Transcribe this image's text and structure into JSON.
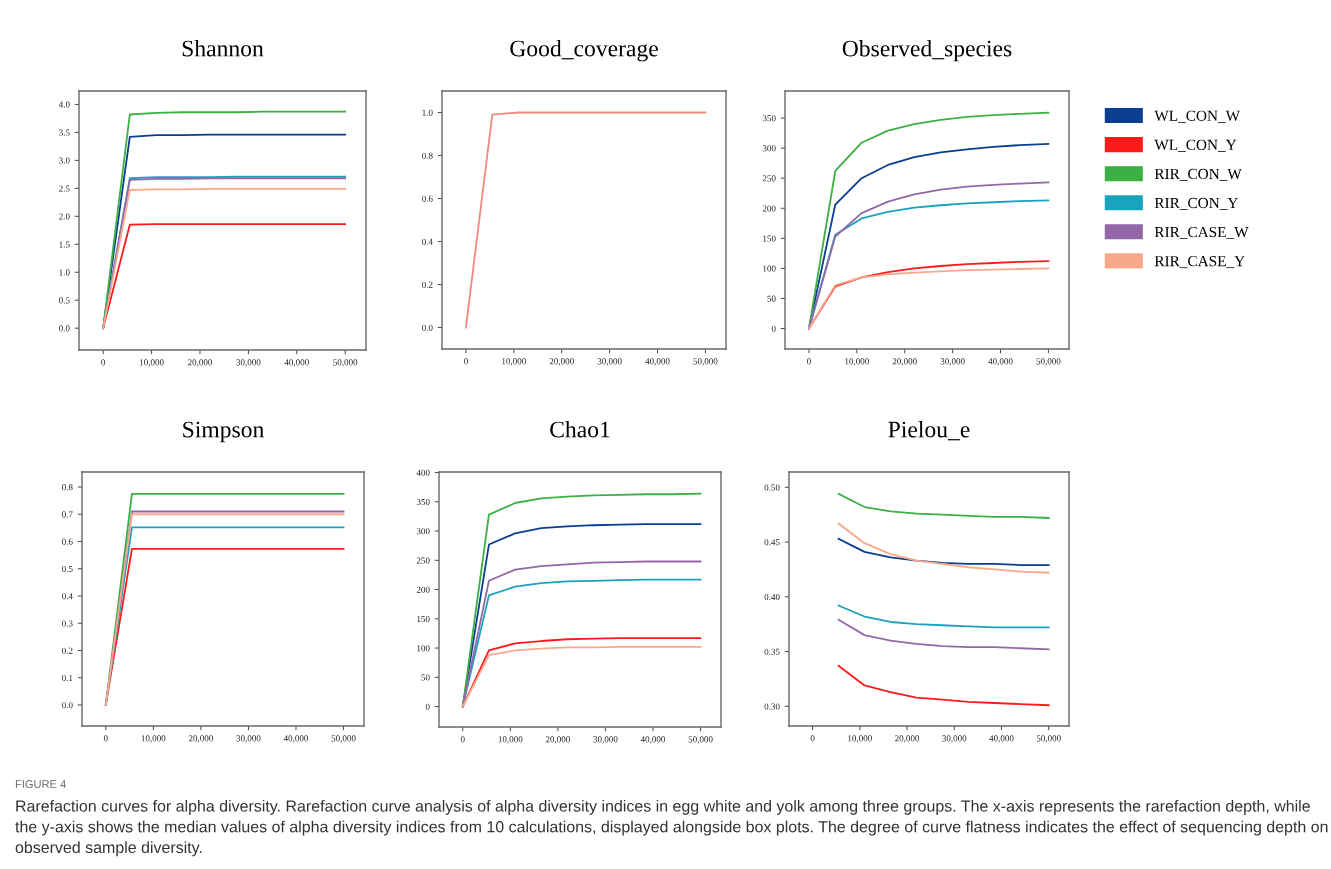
{
  "chart_data": [
    {
      "type": "line",
      "title": "Shannon",
      "x": [
        0,
        5500,
        11000,
        16500,
        22000,
        27500,
        33000,
        38500,
        44000,
        50000
      ],
      "xlim": [
        -5000,
        54300
      ],
      "xticks": [
        0,
        {
          "value": 10000,
          "label": "10,000"
        },
        {
          "value": 20000,
          "label": "20,000"
        },
        {
          "value": 30000,
          "label": "30,000"
        },
        {
          "value": 40000,
          "label": "40,000"
        },
        {
          "value": 50000,
          "label": "50,000"
        }
      ],
      "ylim": [
        -0.39,
        4.24
      ],
      "yticks": [
        {
          "value": 0,
          "label": "0.0"
        },
        0.5,
        {
          "value": 1,
          "label": "1.0"
        },
        1.5,
        {
          "value": 2,
          "label": "2.0"
        },
        2.5,
        {
          "value": 3,
          "label": "3.0"
        },
        3.5,
        {
          "value": 4,
          "label": "4.0"
        }
      ],
      "grid": false,
      "marker": "none",
      "series": [
        {
          "color": "#0b3d91",
          "values": [
            0,
            3.42,
            3.45,
            3.45,
            3.46,
            3.46,
            3.46,
            3.46,
            3.46,
            3.46
          ]
        },
        {
          "color": "#ff1a1a",
          "values": [
            0,
            1.85,
            1.86,
            1.86,
            1.86,
            1.86,
            1.86,
            1.86,
            1.86,
            1.86
          ]
        },
        {
          "color": "#3cb043",
          "values": [
            0,
            3.82,
            3.85,
            3.86,
            3.86,
            3.86,
            3.87,
            3.87,
            3.87,
            3.87
          ]
        },
        {
          "color": "#1aa3bf",
          "values": [
            0,
            2.68,
            2.7,
            2.7,
            2.7,
            2.71,
            2.71,
            2.71,
            2.71,
            2.71
          ]
        },
        {
          "color": "#9467a8",
          "values": [
            0,
            2.65,
            2.67,
            2.67,
            2.68,
            2.68,
            2.68,
            2.68,
            2.68,
            2.68
          ]
        },
        {
          "color": "#f9a98a",
          "values": [
            0,
            2.47,
            2.48,
            2.48,
            2.49,
            2.49,
            2.49,
            2.49,
            2.49,
            2.49
          ]
        }
      ],
      "annotations": [
        "FIGURE 4",
        "Rarefaction curves for alpha diversity. Rarefaction curve analysis of alpha diversity indices in egg white and yolk among three groups. The x-axis represents the rarefaction depth, while the y-axis shows the median values of alpha diversity indices from 10 calculations, displayed alongside box plots. The degree of curve flatness indicates the effect of sequencing depth on observed sample diversity."
      ]
    },
    {
      "type": "line",
      "title": "Good_coverage",
      "x": [
        0,
        5500,
        11000,
        16500,
        22000,
        27500,
        33000,
        38500,
        44000,
        50000
      ],
      "xlim": [
        -5000,
        54300
      ],
      "xticks": [
        0,
        {
          "value": 10000,
          "label": "10,000"
        },
        {
          "value": 20000,
          "label": "20,000"
        },
        {
          "value": 30000,
          "label": "30,000"
        },
        {
          "value": 40000,
          "label": "40,000"
        },
        {
          "value": 50000,
          "label": "50,000"
        }
      ],
      "ylim": [
        -0.1,
        1.1
      ],
      "yticks": [
        {
          "value": 0,
          "label": "0.0"
        },
        0.2,
        0.4,
        0.6,
        0.8,
        {
          "value": 1,
          "label": "1.0"
        }
      ],
      "grid": false,
      "marker": "none",
      "series": [
        {
          "color": "#f08a7a",
          "values": [
            0,
            0.99,
            1.0,
            1.0,
            1.0,
            1.0,
            1.0,
            1.0,
            1.0,
            1.0
          ]
        }
      ]
    },
    {
      "type": "line",
      "title": "Observed_species",
      "x": [
        0,
        5500,
        11000,
        16500,
        22000,
        27500,
        33000,
        38500,
        44000,
        50000
      ],
      "xlim": [
        -5000,
        54300
      ],
      "xticks": [
        0,
        {
          "value": 10000,
          "label": "10,000"
        },
        {
          "value": 20000,
          "label": "20,000"
        },
        {
          "value": 30000,
          "label": "30,000"
        },
        {
          "value": 40000,
          "label": "40,000"
        },
        {
          "value": 50000,
          "label": "50,000"
        }
      ],
      "ylim": [
        -34,
        395
      ],
      "yticks": [
        0,
        50,
        100,
        150,
        200,
        250,
        300,
        350
      ],
      "grid": false,
      "legend": "right",
      "marker": "none",
      "series": [
        {
          "name": "WL_CON_W",
          "color": "#0b3d91",
          "values": [
            0,
            206,
            250,
            272,
            285,
            293,
            298,
            302,
            305,
            307
          ]
        },
        {
          "name": "WL_CON_Y",
          "color": "#ff1a1a",
          "values": [
            0,
            70,
            85,
            94,
            100,
            104,
            107,
            109,
            111,
            112
          ]
        },
        {
          "name": "RIR_CON_W",
          "color": "#3cb043",
          "values": [
            0,
            262,
            309,
            329,
            340,
            347,
            352,
            355,
            357,
            359
          ]
        },
        {
          "name": "RIR_CON_Y",
          "color": "#1aa3bf",
          "values": [
            0,
            156,
            183,
            194,
            201,
            205,
            208,
            210,
            212,
            213
          ]
        },
        {
          "name": "RIR_CASE_W",
          "color": "#9467a8",
          "values": [
            0,
            153,
            192,
            211,
            223,
            231,
            236,
            239,
            241,
            243
          ]
        },
        {
          "name": "RIR_CASE_Y",
          "color": "#f9a98a",
          "values": [
            0,
            72,
            85,
            90,
            93,
            95,
            97,
            98,
            99,
            100
          ]
        }
      ]
    },
    {
      "type": "line",
      "title": "Simpson",
      "x": [
        0,
        5500,
        11000,
        16500,
        22000,
        27500,
        33000,
        38500,
        44000,
        50000
      ],
      "xlim": [
        -5000,
        54300
      ],
      "xticks": [
        0,
        {
          "value": 10000,
          "label": "10,000"
        },
        {
          "value": 20000,
          "label": "20,000"
        },
        {
          "value": 30000,
          "label": "30,000"
        },
        {
          "value": 40000,
          "label": "40,000"
        },
        {
          "value": 50000,
          "label": "50,000"
        }
      ],
      "ylim": [
        -0.077,
        0.855
      ],
      "yticks": [
        {
          "value": 0,
          "label": "0.0"
        },
        0.1,
        0.2,
        0.3,
        0.4,
        0.5,
        0.6,
        0.7,
        0.8
      ],
      "grid": false,
      "marker": "none",
      "series": [
        {
          "color": "#ff1a1a",
          "values": [
            0,
            0.573,
            0.573,
            0.573,
            0.573,
            0.573,
            0.573,
            0.573,
            0.573,
            0.573
          ]
        },
        {
          "color": "#3cb043",
          "values": [
            0,
            0.775,
            0.775,
            0.775,
            0.775,
            0.775,
            0.775,
            0.775,
            0.775,
            0.775
          ]
        },
        {
          "color": "#1aa3bf",
          "values": [
            0,
            0.652,
            0.652,
            0.652,
            0.652,
            0.652,
            0.652,
            0.652,
            0.652,
            0.652
          ]
        },
        {
          "color": "#9467a8",
          "values": [
            0,
            0.71,
            0.71,
            0.71,
            0.71,
            0.71,
            0.71,
            0.71,
            0.71,
            0.71
          ]
        },
        {
          "color": "#f9a98a",
          "values": [
            0,
            0.7,
            0.7,
            0.7,
            0.7,
            0.7,
            0.7,
            0.7,
            0.7,
            0.7
          ]
        }
      ]
    },
    {
      "type": "line",
      "title": "Chao1",
      "x": [
        0,
        5500,
        11000,
        16500,
        22000,
        27500,
        33000,
        38500,
        44000,
        50000
      ],
      "xlim": [
        -5000,
        54300
      ],
      "xticks": [
        0,
        {
          "value": 10000,
          "label": "10,000"
        },
        {
          "value": 20000,
          "label": "20,000"
        },
        {
          "value": 30000,
          "label": "30,000"
        },
        {
          "value": 40000,
          "label": "40,000"
        },
        {
          "value": 50000,
          "label": "50,000"
        }
      ],
      "ylim": [
        -35,
        401
      ],
      "yticks": [
        0,
        50,
        100,
        150,
        200,
        250,
        300,
        350,
        400
      ],
      "grid": false,
      "marker": "none",
      "series": [
        {
          "color": "#0b3d91",
          "values": [
            0,
            277,
            296,
            305,
            308,
            310,
            311,
            312,
            312,
            312
          ]
        },
        {
          "color": "#ff1a1a",
          "values": [
            0,
            96,
            108,
            112,
            115,
            116,
            117,
            117,
            117,
            117
          ]
        },
        {
          "color": "#3cb043",
          "values": [
            0,
            328,
            348,
            356,
            359,
            361,
            362,
            363,
            363,
            364
          ]
        },
        {
          "color": "#1aa3bf",
          "values": [
            0,
            190,
            205,
            211,
            214,
            215,
            216,
            217,
            217,
            217
          ]
        },
        {
          "color": "#9467a8",
          "values": [
            0,
            215,
            234,
            240,
            243,
            246,
            247,
            248,
            248,
            248
          ]
        },
        {
          "color": "#f9a98a",
          "values": [
            0,
            88,
            96,
            99,
            101,
            101,
            102,
            102,
            102,
            102
          ]
        }
      ]
    },
    {
      "type": "line",
      "title": "Pielou_e",
      "x": [
        5500,
        11000,
        16500,
        22000,
        27500,
        33000,
        38500,
        44000,
        50000
      ],
      "xlim": [
        -5000,
        54300
      ],
      "xticks": [
        0,
        {
          "value": 10000,
          "label": "10,000"
        },
        {
          "value": 20000,
          "label": "20,000"
        },
        {
          "value": 30000,
          "label": "30,000"
        },
        {
          "value": 40000,
          "label": "40,000"
        },
        {
          "value": 50000,
          "label": "50,000"
        }
      ],
      "ylim": [
        0.282,
        0.514
      ],
      "yticks": [
        {
          "value": 0.3,
          "label": "0.30"
        },
        0.35,
        {
          "value": 0.4,
          "label": "0.40"
        },
        0.45,
        {
          "value": 0.5,
          "label": "0.50"
        }
      ],
      "grid": false,
      "marker": "none",
      "series": [
        {
          "color": "#0b3d91",
          "values": [
            0.453,
            0.441,
            0.436,
            0.433,
            0.431,
            0.43,
            0.43,
            0.429,
            0.429
          ]
        },
        {
          "color": "#ff1a1a",
          "values": [
            0.337,
            0.319,
            0.313,
            0.308,
            0.306,
            0.304,
            0.303,
            0.302,
            0.301
          ]
        },
        {
          "color": "#3cb043",
          "values": [
            0.494,
            0.482,
            0.478,
            0.476,
            0.475,
            0.474,
            0.473,
            0.473,
            0.472
          ]
        },
        {
          "color": "#1aa3bf",
          "values": [
            0.392,
            0.382,
            0.377,
            0.375,
            0.374,
            0.373,
            0.372,
            0.372,
            0.372
          ]
        },
        {
          "color": "#9467a8",
          "values": [
            0.379,
            0.365,
            0.36,
            0.357,
            0.355,
            0.354,
            0.354,
            0.353,
            0.352
          ]
        },
        {
          "color": "#f9a98a",
          "values": [
            0.467,
            0.449,
            0.439,
            0.433,
            0.43,
            0.427,
            0.425,
            0.423,
            0.422
          ]
        }
      ]
    }
  ]
}
